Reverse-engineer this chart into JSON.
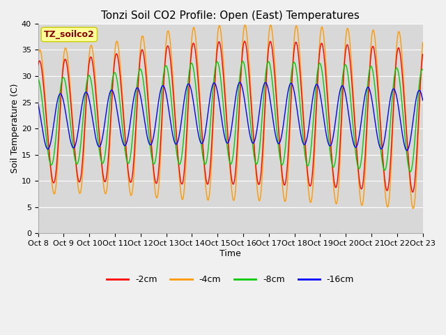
{
  "title": "Tonzi Soil CO2 Profile: Open (East) Temperatures",
  "xlabel": "Time",
  "ylabel": "Soil Temperature (C)",
  "ylim": [
    0,
    40
  ],
  "x_tick_labels": [
    "Oct 8",
    "Oct 9",
    "Oct 10",
    "Oct 11",
    "Oct 12",
    "Oct 13",
    "Oct 14",
    "Oct 15",
    "Oct 16",
    "Oct 17",
    "Oct 18",
    "Oct 19",
    "Oct 20",
    "Oct 21",
    "Oct 22",
    "Oct 23"
  ],
  "legend_label": "TZ_soilco2",
  "series_labels": [
    "-2cm",
    "-4cm",
    "-8cm",
    "-16cm"
  ],
  "series_colors": [
    "#ff0000",
    "#ff9900",
    "#00cc00",
    "#0000ff"
  ],
  "plot_bg_color": "#d8d8d8",
  "fig_bg_color": "#f0f0f0",
  "title_fontsize": 11,
  "axis_label_fontsize": 9,
  "tick_fontsize": 8,
  "legend_box_facecolor": "#ffff99",
  "legend_box_edgecolor": "#cccc00",
  "legend_text_color": "#880000",
  "grid_color": "#ffffff",
  "yticks": [
    0,
    5,
    10,
    15,
    20,
    25,
    30,
    35,
    40
  ]
}
